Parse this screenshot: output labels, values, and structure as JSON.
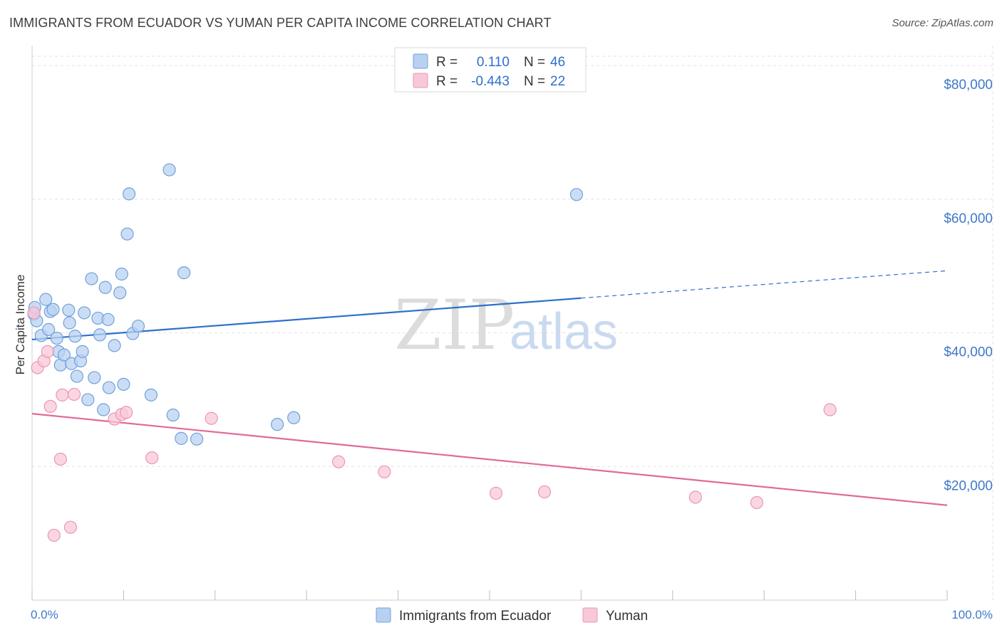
{
  "title": "IMMIGRANTS FROM ECUADOR VS YUMAN PER CAPITA INCOME CORRELATION CHART",
  "source": "Source: ZipAtlas.com",
  "watermark": {
    "part1": "ZIP",
    "part2": "atlas"
  },
  "chart_data": {
    "type": "scatter",
    "title": "IMMIGRANTS FROM ECUADOR VS YUMAN PER CAPITA INCOME CORRELATION CHART",
    "xlabel": "",
    "ylabel": "Per Capita Income",
    "xlim": [
      0,
      100
    ],
    "ylim": [
      0,
      83000
    ],
    "x_tick_labels": [
      "0.0%",
      "100.0%"
    ],
    "y_ticks": [
      20000,
      40000,
      60000,
      80000
    ],
    "y_tick_labels": [
      "$20,000",
      "$40,000",
      "$60,000",
      "$80,000"
    ],
    "grid": true,
    "legend": {
      "position": "top-center",
      "entries": [
        {
          "r_label": "R =",
          "r_value": "0.110",
          "n_label": "N =",
          "n_value": "46"
        },
        {
          "r_label": "R =",
          "r_value": "-0.443",
          "n_label": "N =",
          "n_value": "22"
        }
      ]
    },
    "series": [
      {
        "name": "Immigrants from Ecuador",
        "color": "#6fa1dc",
        "fill": "#b9d1f1",
        "line_color": "#2d6fcc",
        "trend": {
          "x_start": 0,
          "y_start": 39000,
          "x_solid_end": 60,
          "y_solid_end": 45200,
          "x_end": 100,
          "y_end": 49300
        },
        "points": [
          [
            0.2,
            42800
          ],
          [
            0.3,
            43800
          ],
          [
            0.5,
            41800
          ],
          [
            1.0,
            39600
          ],
          [
            1.5,
            45000
          ],
          [
            1.8,
            40500
          ],
          [
            2.0,
            43200
          ],
          [
            2.3,
            43500
          ],
          [
            2.7,
            39200
          ],
          [
            2.9,
            37200
          ],
          [
            3.1,
            35200
          ],
          [
            3.5,
            36700
          ],
          [
            4.1,
            41500
          ],
          [
            4.0,
            43400
          ],
          [
            4.3,
            35400
          ],
          [
            4.7,
            39500
          ],
          [
            4.9,
            33500
          ],
          [
            5.3,
            35800
          ],
          [
            5.5,
            37200
          ],
          [
            5.7,
            43000
          ],
          [
            6.1,
            30000
          ],
          [
            6.5,
            48100
          ],
          [
            6.8,
            33300
          ],
          [
            7.2,
            42200
          ],
          [
            7.4,
            39700
          ],
          [
            7.8,
            28500
          ],
          [
            8.0,
            46800
          ],
          [
            8.3,
            42000
          ],
          [
            8.4,
            31800
          ],
          [
            9.0,
            38100
          ],
          [
            9.6,
            46000
          ],
          [
            9.8,
            48800
          ],
          [
            10.0,
            32300
          ],
          [
            10.4,
            54800
          ],
          [
            10.6,
            60800
          ],
          [
            11.0,
            39900
          ],
          [
            11.6,
            41000
          ],
          [
            13.0,
            30700
          ],
          [
            15.0,
            64400
          ],
          [
            15.4,
            27700
          ],
          [
            16.3,
            24200
          ],
          [
            16.6,
            49000
          ],
          [
            18.0,
            24100
          ],
          [
            26.8,
            26300
          ],
          [
            28.6,
            27300
          ],
          [
            59.5,
            60700
          ]
        ]
      },
      {
        "name": "Yuman",
        "color": "#ec96b3",
        "fill": "#f8c8d8",
        "line_color": "#e3689a",
        "trend": {
          "x_start": 0,
          "y_start": 27900,
          "x_end": 100,
          "y_end": 14200
        },
        "points": [
          [
            0.6,
            34800
          ],
          [
            1.3,
            35800
          ],
          [
            1.7,
            37200
          ],
          [
            2.0,
            29000
          ],
          [
            2.4,
            9700
          ],
          [
            3.1,
            21100
          ],
          [
            3.3,
            30700
          ],
          [
            4.2,
            10900
          ],
          [
            4.6,
            30800
          ],
          [
            9.0,
            27100
          ],
          [
            9.8,
            27800
          ],
          [
            10.3,
            28100
          ],
          [
            13.1,
            21300
          ],
          [
            19.6,
            27200
          ],
          [
            33.5,
            20700
          ],
          [
            38.5,
            19200
          ],
          [
            50.7,
            16000
          ],
          [
            56.0,
            16200
          ],
          [
            72.5,
            15400
          ],
          [
            79.2,
            14600
          ],
          [
            87.2,
            28500
          ],
          [
            0.2,
            43000
          ]
        ]
      }
    ]
  }
}
